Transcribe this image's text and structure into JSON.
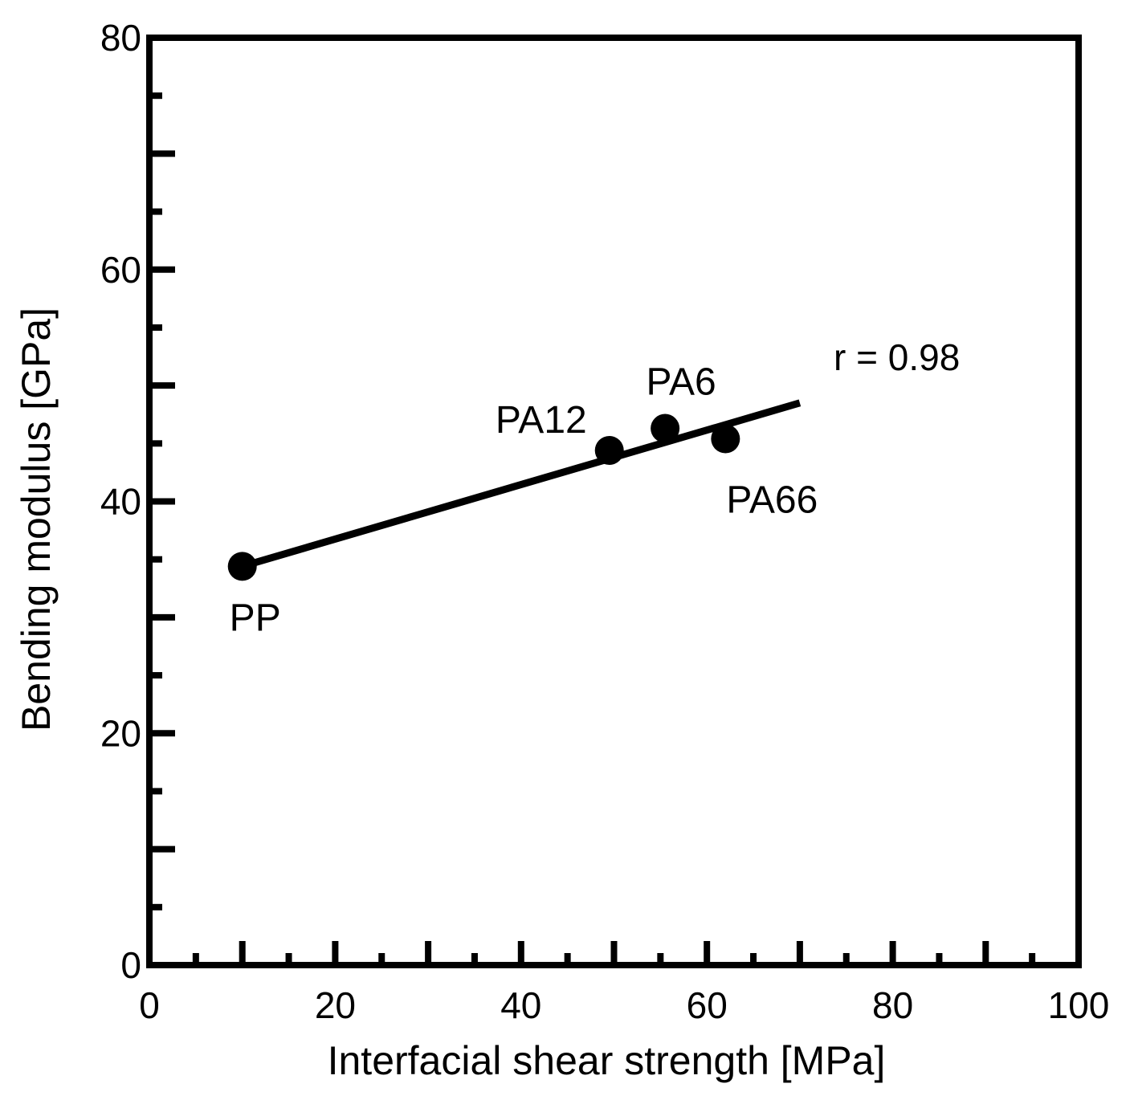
{
  "chart_data": {
    "type": "scatter",
    "xlabel": "Interfacial shear strength [MPa]",
    "ylabel": "Bending modulus [GPa]",
    "xlim": [
      0,
      100
    ],
    "ylim": [
      0,
      80
    ],
    "x_ticks": [
      0,
      20,
      40,
      60,
      80,
      100
    ],
    "y_ticks": [
      0,
      20,
      40,
      60,
      80
    ],
    "x_tick_labels": [
      "0",
      "20",
      "40",
      "60",
      "80",
      "100"
    ],
    "y_tick_labels": [
      "0",
      "20",
      "40",
      "60",
      "80"
    ],
    "x_minor_step": 5,
    "y_minor_step": 5,
    "grid": false,
    "points": [
      {
        "label": "PP",
        "x": 10,
        "y": 34.4
      },
      {
        "label": "PA12",
        "x": 49.5,
        "y": 44.4
      },
      {
        "label": "PA6",
        "x": 55.5,
        "y": 46.3
      },
      {
        "label": "PA66",
        "x": 62,
        "y": 45.4
      }
    ],
    "fit_line": {
      "x": [
        10,
        70
      ],
      "y": [
        34.4,
        48.5
      ]
    },
    "annotation": "r = 0.98",
    "colors": {
      "marker": "#000000",
      "line": "#000000",
      "axes": "#000000"
    }
  }
}
